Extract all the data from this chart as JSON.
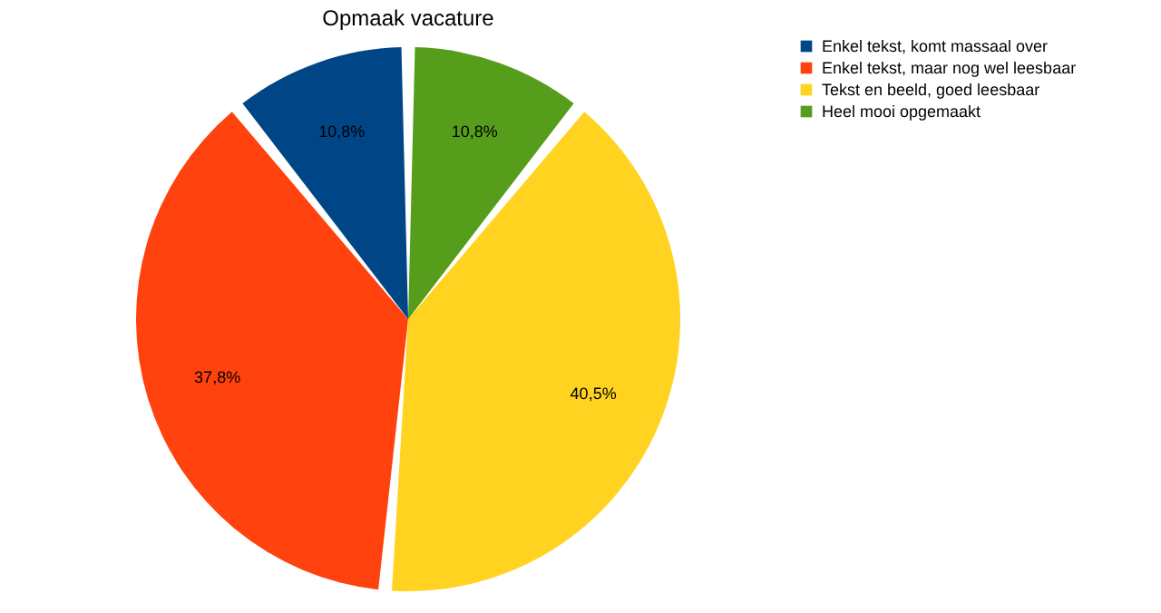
{
  "chart_data": {
    "type": "pie",
    "title": "Opmaak vacature",
    "categories": [
      "Enkel tekst, komt massaal over",
      "Enkel tekst, maar nog wel leesbaar",
      "Tekst en beeld, goed leesbaar",
      "Heel mooi opgemaakt"
    ],
    "values": [
      10.8,
      37.8,
      40.5,
      10.8
    ],
    "colors": [
      "#004586",
      "#ff420e",
      "#ffd320",
      "#579d1c"
    ],
    "value_labels": [
      "10,8%",
      "37,8%",
      "40,5%",
      "10,8%"
    ],
    "legend": "right"
  }
}
